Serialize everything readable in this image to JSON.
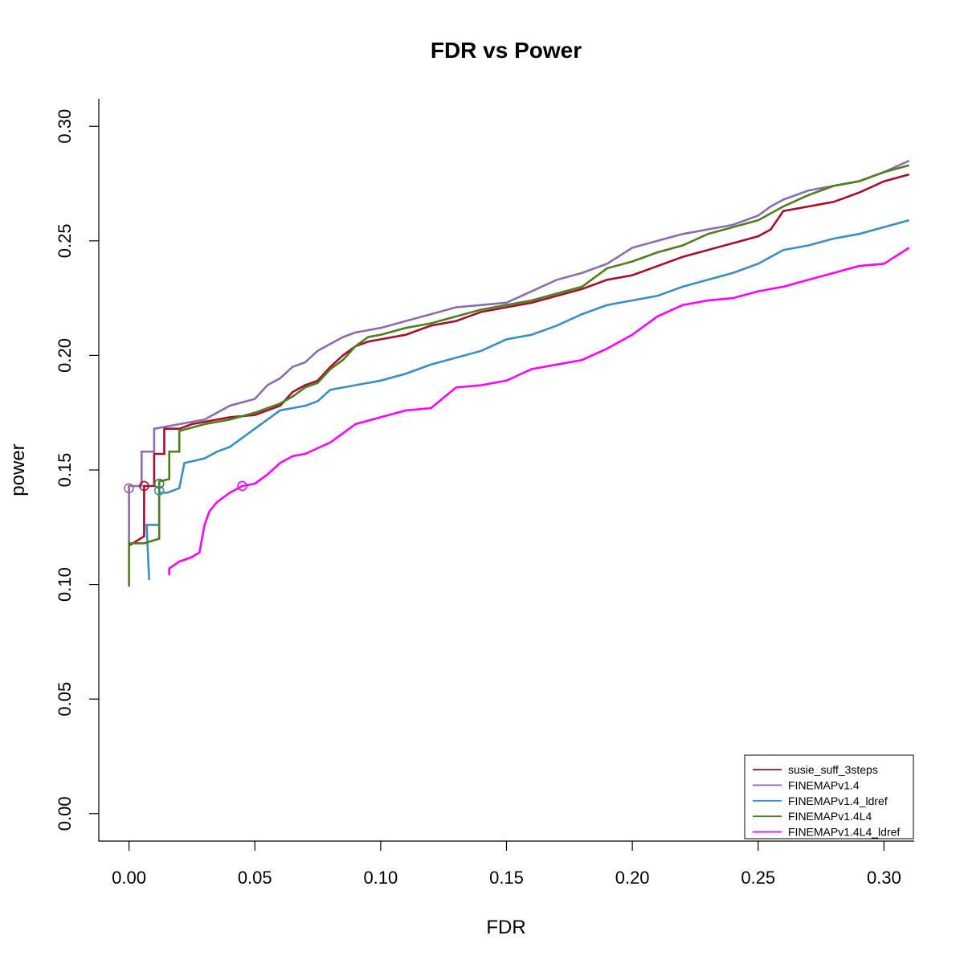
{
  "chart_data": {
    "type": "line",
    "title": "FDR vs Power",
    "xlabel": "FDR",
    "ylabel": "power",
    "xlim": [
      -0.012,
      0.312
    ],
    "ylim": [
      -0.012,
      0.312
    ],
    "xticks": [
      "0.00",
      "0.05",
      "0.10",
      "0.15",
      "0.20",
      "0.25",
      "0.30"
    ],
    "yticks": [
      "0.00",
      "0.05",
      "0.10",
      "0.15",
      "0.20",
      "0.25",
      "0.30"
    ],
    "grid": false,
    "legend_position": "bottom-right",
    "series": [
      {
        "name": "susie_suff_3steps",
        "color": "#A50F2D",
        "marker": [
          0.006,
          0.143
        ],
        "points": [
          [
            0.0,
            0.117
          ],
          [
            0.006,
            0.121
          ],
          [
            0.006,
            0.143
          ],
          [
            0.01,
            0.143
          ],
          [
            0.01,
            0.157
          ],
          [
            0.014,
            0.157
          ],
          [
            0.014,
            0.168
          ],
          [
            0.02,
            0.168
          ],
          [
            0.025,
            0.17
          ],
          [
            0.03,
            0.171
          ],
          [
            0.04,
            0.173
          ],
          [
            0.05,
            0.174
          ],
          [
            0.06,
            0.178
          ],
          [
            0.065,
            0.184
          ],
          [
            0.07,
            0.187
          ],
          [
            0.075,
            0.189
          ],
          [
            0.08,
            0.195
          ],
          [
            0.085,
            0.2
          ],
          [
            0.09,
            0.204
          ],
          [
            0.095,
            0.206
          ],
          [
            0.1,
            0.207
          ],
          [
            0.11,
            0.209
          ],
          [
            0.12,
            0.213
          ],
          [
            0.13,
            0.215
          ],
          [
            0.14,
            0.219
          ],
          [
            0.15,
            0.221
          ],
          [
            0.16,
            0.223
          ],
          [
            0.17,
            0.226
          ],
          [
            0.18,
            0.229
          ],
          [
            0.19,
            0.233
          ],
          [
            0.2,
            0.235
          ],
          [
            0.21,
            0.239
          ],
          [
            0.22,
            0.243
          ],
          [
            0.23,
            0.246
          ],
          [
            0.24,
            0.249
          ],
          [
            0.25,
            0.252
          ],
          [
            0.255,
            0.255
          ],
          [
            0.26,
            0.263
          ],
          [
            0.27,
            0.265
          ],
          [
            0.28,
            0.267
          ],
          [
            0.29,
            0.271
          ],
          [
            0.3,
            0.276
          ],
          [
            0.31,
            0.279
          ]
        ]
      },
      {
        "name": "FINEMAPv1.4",
        "color": "#8C6BB1",
        "marker": [
          0.0,
          0.142
        ],
        "points": [
          [
            0.0,
            0.118
          ],
          [
            0.0,
            0.143
          ],
          [
            0.005,
            0.143
          ],
          [
            0.005,
            0.158
          ],
          [
            0.01,
            0.158
          ],
          [
            0.01,
            0.168
          ],
          [
            0.02,
            0.17
          ],
          [
            0.03,
            0.172
          ],
          [
            0.04,
            0.178
          ],
          [
            0.05,
            0.181
          ],
          [
            0.055,
            0.187
          ],
          [
            0.06,
            0.19
          ],
          [
            0.065,
            0.195
          ],
          [
            0.07,
            0.197
          ],
          [
            0.075,
            0.202
          ],
          [
            0.08,
            0.205
          ],
          [
            0.085,
            0.208
          ],
          [
            0.09,
            0.21
          ],
          [
            0.1,
            0.212
          ],
          [
            0.11,
            0.215
          ],
          [
            0.12,
            0.218
          ],
          [
            0.13,
            0.221
          ],
          [
            0.14,
            0.222
          ],
          [
            0.15,
            0.223
          ],
          [
            0.16,
            0.228
          ],
          [
            0.17,
            0.233
          ],
          [
            0.18,
            0.236
          ],
          [
            0.19,
            0.24
          ],
          [
            0.2,
            0.247
          ],
          [
            0.21,
            0.25
          ],
          [
            0.22,
            0.253
          ],
          [
            0.23,
            0.255
          ],
          [
            0.24,
            0.257
          ],
          [
            0.25,
            0.261
          ],
          [
            0.255,
            0.265
          ],
          [
            0.26,
            0.268
          ],
          [
            0.27,
            0.272
          ],
          [
            0.28,
            0.274
          ],
          [
            0.29,
            0.276
          ],
          [
            0.3,
            0.28
          ],
          [
            0.31,
            0.285
          ]
        ]
      },
      {
        "name": "FINEMAPv1.4_ldref",
        "color": "#3A8FC2",
        "marker": [
          0.012,
          0.141
        ],
        "points": [
          [
            0.008,
            0.102
          ],
          [
            0.007,
            0.126
          ],
          [
            0.012,
            0.126
          ],
          [
            0.012,
            0.14
          ],
          [
            0.015,
            0.14
          ],
          [
            0.02,
            0.142
          ],
          [
            0.022,
            0.153
          ],
          [
            0.03,
            0.155
          ],
          [
            0.035,
            0.158
          ],
          [
            0.04,
            0.16
          ],
          [
            0.045,
            0.164
          ],
          [
            0.05,
            0.168
          ],
          [
            0.055,
            0.172
          ],
          [
            0.06,
            0.176
          ],
          [
            0.07,
            0.178
          ],
          [
            0.075,
            0.18
          ],
          [
            0.08,
            0.185
          ],
          [
            0.09,
            0.187
          ],
          [
            0.1,
            0.189
          ],
          [
            0.11,
            0.192
          ],
          [
            0.12,
            0.196
          ],
          [
            0.13,
            0.199
          ],
          [
            0.14,
            0.202
          ],
          [
            0.15,
            0.207
          ],
          [
            0.16,
            0.209
          ],
          [
            0.17,
            0.213
          ],
          [
            0.18,
            0.218
          ],
          [
            0.19,
            0.222
          ],
          [
            0.2,
            0.224
          ],
          [
            0.21,
            0.226
          ],
          [
            0.22,
            0.23
          ],
          [
            0.23,
            0.233
          ],
          [
            0.24,
            0.236
          ],
          [
            0.25,
            0.24
          ],
          [
            0.26,
            0.246
          ],
          [
            0.27,
            0.248
          ],
          [
            0.28,
            0.251
          ],
          [
            0.29,
            0.253
          ],
          [
            0.3,
            0.256
          ],
          [
            0.31,
            0.259
          ]
        ]
      },
      {
        "name": "FINEMAPv1.4L4",
        "color": "#4D7F1E",
        "marker": [
          0.012,
          0.144
        ],
        "points": [
          [
            0.0,
            0.099
          ],
          [
            0.0,
            0.118
          ],
          [
            0.006,
            0.118
          ],
          [
            0.012,
            0.12
          ],
          [
            0.012,
            0.145
          ],
          [
            0.016,
            0.146
          ],
          [
            0.016,
            0.158
          ],
          [
            0.02,
            0.158
          ],
          [
            0.02,
            0.167
          ],
          [
            0.03,
            0.17
          ],
          [
            0.04,
            0.172
          ],
          [
            0.05,
            0.175
          ],
          [
            0.06,
            0.179
          ],
          [
            0.065,
            0.182
          ],
          [
            0.07,
            0.186
          ],
          [
            0.075,
            0.188
          ],
          [
            0.08,
            0.194
          ],
          [
            0.085,
            0.198
          ],
          [
            0.09,
            0.204
          ],
          [
            0.095,
            0.208
          ],
          [
            0.1,
            0.209
          ],
          [
            0.11,
            0.212
          ],
          [
            0.12,
            0.214
          ],
          [
            0.13,
            0.217
          ],
          [
            0.14,
            0.22
          ],
          [
            0.15,
            0.222
          ],
          [
            0.16,
            0.224
          ],
          [
            0.17,
            0.227
          ],
          [
            0.18,
            0.23
          ],
          [
            0.19,
            0.238
          ],
          [
            0.2,
            0.241
          ],
          [
            0.21,
            0.245
          ],
          [
            0.22,
            0.248
          ],
          [
            0.23,
            0.253
          ],
          [
            0.24,
            0.256
          ],
          [
            0.25,
            0.259
          ],
          [
            0.255,
            0.262
          ],
          [
            0.26,
            0.265
          ],
          [
            0.27,
            0.27
          ],
          [
            0.28,
            0.274
          ],
          [
            0.29,
            0.276
          ],
          [
            0.3,
            0.28
          ],
          [
            0.31,
            0.283
          ]
        ]
      },
      {
        "name": "FINEMAPv1.4L4_ldref",
        "color": "#FF00FF",
        "marker": [
          0.045,
          0.143
        ],
        "points": [
          [
            0.016,
            0.104
          ],
          [
            0.016,
            0.107
          ],
          [
            0.02,
            0.11
          ],
          [
            0.025,
            0.112
          ],
          [
            0.028,
            0.114
          ],
          [
            0.03,
            0.126
          ],
          [
            0.032,
            0.132
          ],
          [
            0.035,
            0.136
          ],
          [
            0.04,
            0.14
          ],
          [
            0.045,
            0.143
          ],
          [
            0.05,
            0.144
          ],
          [
            0.055,
            0.148
          ],
          [
            0.06,
            0.153
          ],
          [
            0.065,
            0.156
          ],
          [
            0.07,
            0.157
          ],
          [
            0.08,
            0.162
          ],
          [
            0.085,
            0.166
          ],
          [
            0.09,
            0.17
          ],
          [
            0.1,
            0.173
          ],
          [
            0.11,
            0.176
          ],
          [
            0.12,
            0.177
          ],
          [
            0.13,
            0.186
          ],
          [
            0.14,
            0.187
          ],
          [
            0.15,
            0.189
          ],
          [
            0.16,
            0.194
          ],
          [
            0.17,
            0.196
          ],
          [
            0.18,
            0.198
          ],
          [
            0.19,
            0.203
          ],
          [
            0.2,
            0.209
          ],
          [
            0.21,
            0.217
          ],
          [
            0.22,
            0.222
          ],
          [
            0.23,
            0.224
          ],
          [
            0.24,
            0.225
          ],
          [
            0.25,
            0.228
          ],
          [
            0.26,
            0.23
          ],
          [
            0.27,
            0.233
          ],
          [
            0.28,
            0.236
          ],
          [
            0.29,
            0.239
          ],
          [
            0.3,
            0.24
          ],
          [
            0.31,
            0.247
          ]
        ]
      }
    ]
  }
}
